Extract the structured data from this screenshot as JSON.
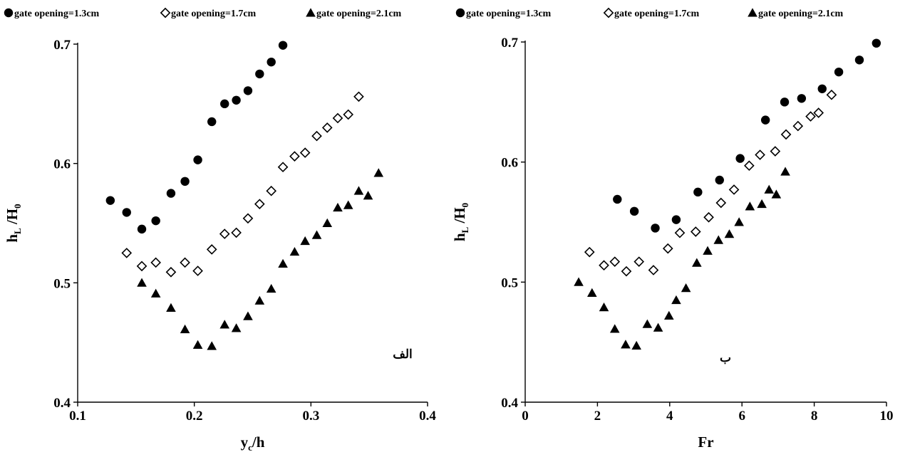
{
  "chart_data": [
    {
      "type": "scatter",
      "panel_label": "الف",
      "xlabel": "y",
      "xlabel_sub": "c",
      "xlabel_rest": "/h",
      "ylabel": "h",
      "ylabel_sub1": "L",
      "ylabel_mid": " /H",
      "ylabel_sub2": "0",
      "xlim": [
        0.1,
        0.4
      ],
      "ylim": [
        0.4,
        0.7
      ],
      "xticks": [
        "0.1",
        "0.2",
        "0.3",
        "0.4"
      ],
      "yticks": [
        "0.4",
        "0.5",
        "0.6",
        "0.7"
      ],
      "grid": false,
      "legend_position": "top",
      "series": [
        {
          "name": "gate opening=1.3cm",
          "marker": "circle",
          "x": [
            0.128,
            0.142,
            0.155,
            0.167,
            0.18,
            0.192,
            0.203,
            0.215,
            0.226,
            0.236,
            0.246,
            0.256,
            0.266,
            0.276
          ],
          "y": [
            0.569,
            0.559,
            0.545,
            0.552,
            0.575,
            0.585,
            0.603,
            0.635,
            0.65,
            0.653,
            0.661,
            0.675,
            0.685,
            0.699
          ]
        },
        {
          "name": "gate opening=1.7cm",
          "marker": "diamond",
          "x": [
            0.142,
            0.155,
            0.167,
            0.18,
            0.192,
            0.203,
            0.215,
            0.226,
            0.236,
            0.246,
            0.256,
            0.266,
            0.276,
            0.286,
            0.295,
            0.305,
            0.314,
            0.323,
            0.332,
            0.341
          ],
          "y": [
            0.525,
            0.514,
            0.517,
            0.509,
            0.517,
            0.51,
            0.528,
            0.541,
            0.542,
            0.554,
            0.566,
            0.577,
            0.597,
            0.606,
            0.609,
            0.623,
            0.63,
            0.638,
            0.641,
            0.656
          ]
        },
        {
          "name": "gate opening=2.1cm",
          "marker": "triangle",
          "x": [
            0.155,
            0.167,
            0.18,
            0.192,
            0.203,
            0.215,
            0.226,
            0.236,
            0.246,
            0.256,
            0.266,
            0.276,
            0.286,
            0.295,
            0.305,
            0.314,
            0.323,
            0.332,
            0.341,
            0.349,
            0.358
          ],
          "y": [
            0.5,
            0.491,
            0.479,
            0.461,
            0.448,
            0.447,
            0.465,
            0.462,
            0.472,
            0.485,
            0.495,
            0.516,
            0.526,
            0.535,
            0.54,
            0.55,
            0.563,
            0.565,
            0.577,
            0.573,
            0.592
          ]
        }
      ]
    },
    {
      "type": "scatter",
      "panel_label": "ب",
      "xlabel": "Fr",
      "ylabel": "h",
      "ylabel_sub1": "L",
      "ylabel_mid": " /H",
      "ylabel_sub2": "0",
      "xlim": [
        0,
        10
      ],
      "ylim": [
        0.4,
        0.7
      ],
      "xticks": [
        "0",
        "2",
        "4",
        "6",
        "8",
        "10"
      ],
      "yticks": [
        "0.4",
        "0.5",
        "0.6",
        "0.7"
      ],
      "grid": false,
      "legend_position": "top",
      "series": [
        {
          "name": "gate opening=1.3cm",
          "marker": "circle",
          "x": [
            2.55,
            3.02,
            3.6,
            4.18,
            4.78,
            5.38,
            5.95,
            6.65,
            7.18,
            7.65,
            8.22,
            8.68,
            9.25,
            9.72
          ],
          "y": [
            0.569,
            0.559,
            0.545,
            0.552,
            0.575,
            0.585,
            0.603,
            0.635,
            0.65,
            0.653,
            0.661,
            0.675,
            0.685,
            0.699
          ]
        },
        {
          "name": "gate opening=1.7cm",
          "marker": "diamond",
          "x": [
            1.78,
            2.18,
            2.48,
            2.8,
            3.15,
            3.55,
            3.95,
            4.28,
            4.72,
            5.08,
            5.42,
            5.78,
            6.2,
            6.5,
            6.92,
            7.22,
            7.55,
            7.9,
            8.12,
            8.48
          ],
          "y": [
            0.525,
            0.514,
            0.517,
            0.509,
            0.517,
            0.51,
            0.528,
            0.541,
            0.542,
            0.554,
            0.566,
            0.577,
            0.597,
            0.606,
            0.609,
            0.623,
            0.63,
            0.638,
            0.641,
            0.656
          ]
        },
        {
          "name": "gate opening=2.1cm",
          "marker": "triangle",
          "x": [
            1.48,
            1.85,
            2.18,
            2.48,
            2.78,
            3.08,
            3.38,
            3.68,
            3.98,
            4.18,
            4.45,
            4.75,
            5.05,
            5.35,
            5.65,
            5.92,
            6.22,
            6.55,
            6.75,
            6.95,
            7.2
          ],
          "y": [
            0.5,
            0.491,
            0.479,
            0.461,
            0.448,
            0.447,
            0.465,
            0.462,
            0.472,
            0.485,
            0.495,
            0.516,
            0.526,
            0.535,
            0.54,
            0.55,
            0.563,
            0.565,
            0.577,
            0.573,
            0.592
          ]
        }
      ]
    }
  ]
}
